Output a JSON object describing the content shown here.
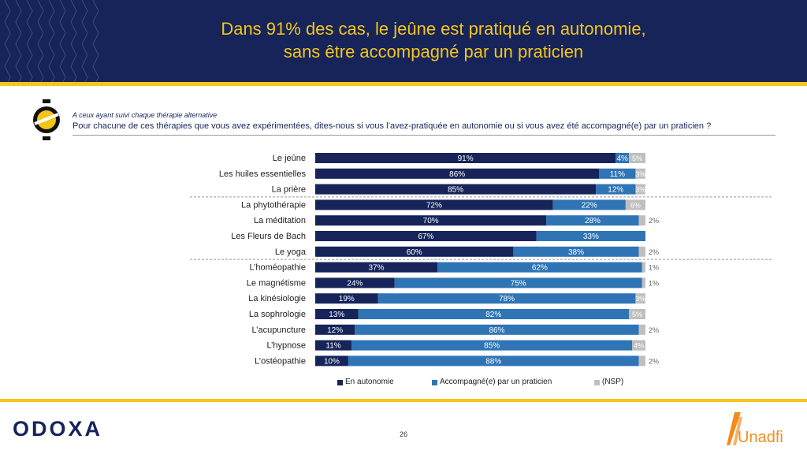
{
  "header": {
    "title_line1": "Dans 91% des cas, le jeûne est pratiqué en autonomie,",
    "title_line2": "sans être accompagné par un praticien"
  },
  "question": {
    "subtitle": "A ceux ayant suivi chaque thérapie alternative",
    "text": "Pour chacune de ces thérapies que vous avez expérimentées, dites-nous si vous l’avez-pratiquée en autonomie ou si vous avez été accompagné(e) par un praticien ?"
  },
  "colors": {
    "navy": "#16245a",
    "gold": "#f5c518",
    "autonomie": "#16245a",
    "accompagne": "#2f74b5",
    "nsp": "#bfbfbf"
  },
  "chart_data": {
    "type": "bar",
    "orientation": "horizontal",
    "stacked": true,
    "unit": "%",
    "categories": [
      "Le jeûne",
      "Les huiles essentielles",
      "La prière",
      "La phytothérapie",
      "La méditation",
      "Les Fleurs de Bach",
      "Le yoga",
      "L’homéopathie",
      "Le magnétisme",
      "La kinésiologie",
      "La sophrologie",
      "L’acupuncture",
      "L’hypnose",
      "L’ostéopathie"
    ],
    "series": [
      {
        "name": "En autonomie",
        "color": "#16245a",
        "values": [
          91,
          86,
          85,
          72,
          70,
          67,
          60,
          37,
          24,
          19,
          13,
          12,
          11,
          10
        ]
      },
      {
        "name": "Accompagné(e) par un praticien",
        "color": "#2f74b5",
        "values": [
          4,
          11,
          12,
          22,
          28,
          33,
          38,
          62,
          75,
          78,
          82,
          86,
          85,
          88
        ]
      },
      {
        "name": "(NSP)",
        "color": "#bfbfbf",
        "values": [
          5,
          3,
          3,
          6,
          2,
          0,
          2,
          1,
          1,
          3,
          5,
          2,
          4,
          2
        ]
      }
    ],
    "value_labels": [
      [
        "91%",
        "4%",
        "5%"
      ],
      [
        "86%",
        "11%",
        "3%"
      ],
      [
        "85%",
        "12%",
        "3%"
      ],
      [
        "72%",
        "22%",
        "6%"
      ],
      [
        "70%",
        "28%",
        "2%"
      ],
      [
        "67%",
        "33%",
        ""
      ],
      [
        "60%",
        "38%",
        "2%"
      ],
      [
        "37%",
        "62%",
        "1%"
      ],
      [
        "24%",
        "75%",
        "1%"
      ],
      [
        "19%",
        "78%",
        "3%"
      ],
      [
        "13%",
        "82%",
        "5%"
      ],
      [
        "12%",
        "86%",
        "2%"
      ],
      [
        "11%",
        "85%",
        "4%"
      ],
      [
        "10%",
        "88%",
        "2%"
      ]
    ],
    "group_separators_after": [
      2,
      6
    ],
    "legend_position": "bottom"
  },
  "footer": {
    "logo_left": "ODOXA",
    "page_number": "26",
    "logo_right": "Unadfi"
  }
}
